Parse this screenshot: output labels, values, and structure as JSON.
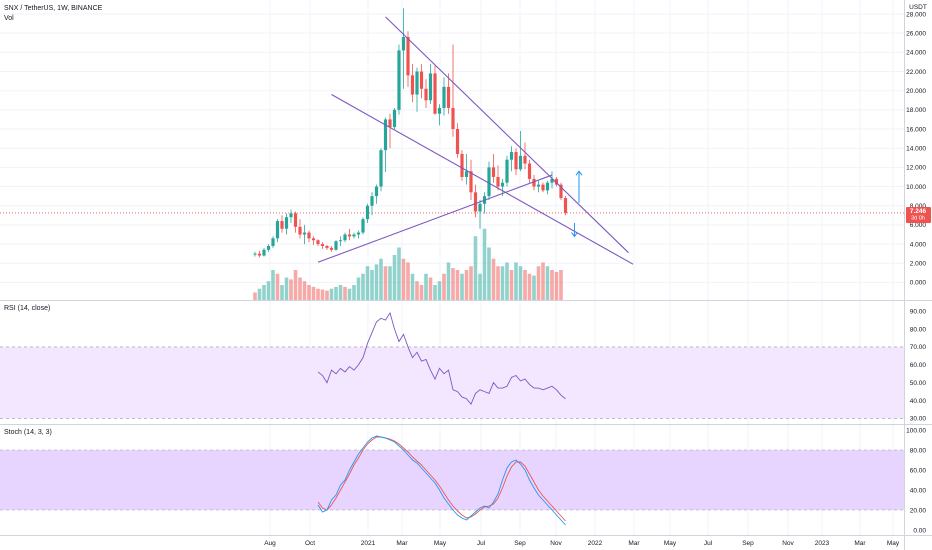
{
  "header": {
    "symbol": "SNX / TetherUS, 1W, BINANCE",
    "volume_label": "Vol",
    "currency": "USDT"
  },
  "price_tag": {
    "value": "7.246",
    "countdown": "3d 0h",
    "color": "#ef5350"
  },
  "colors": {
    "up": "#26a69a",
    "down": "#ef5350",
    "trendline": "#7e57c2",
    "rsi_line": "#7e57c2",
    "rsi_band": "#f3e6ff",
    "stoch_band": "#e8d5ff",
    "stoch_k": "#2196f3",
    "stoch_d": "#ef5350",
    "arrow": "#2196f3"
  },
  "chart_data": [
    {
      "type": "candlestick",
      "title": "SNX / TetherUS, 1W, BINANCE",
      "ylabel": "USDT",
      "ylim": [
        -1,
        28
      ],
      "y_ticks": [
        "28.000",
        "26.000",
        "24.000",
        "22.000",
        "20.000",
        "18.000",
        "16.000",
        "14.000",
        "12.000",
        "10.000",
        "8.000",
        "6.000",
        "4.000",
        "2.000",
        "0.000"
      ],
      "x_ticks": [
        "Aug",
        "Oct",
        "2021",
        "Mar",
        "May",
        "Jul",
        "Sep",
        "Nov",
        "2022",
        "Mar",
        "May",
        "Jul",
        "Sep",
        "Nov",
        "2023",
        "Mar",
        "May"
      ],
      "grid": true,
      "current_price": 7.246,
      "candles": [
        [
          2.9,
          3.2,
          2.7,
          3.0
        ],
        [
          3.0,
          3.3,
          2.6,
          2.8
        ],
        [
          2.8,
          3.6,
          2.7,
          3.4
        ],
        [
          3.4,
          4.0,
          3.2,
          3.8
        ],
        [
          3.8,
          4.8,
          3.6,
          4.6
        ],
        [
          4.6,
          6.6,
          4.2,
          6.4
        ],
        [
          6.4,
          7.0,
          5.2,
          5.6
        ],
        [
          5.6,
          7.2,
          5.0,
          6.8
        ],
        [
          6.8,
          7.6,
          6.2,
          7.2
        ],
        [
          7.2,
          7.4,
          5.2,
          5.8
        ],
        [
          5.8,
          6.6,
          4.6,
          5.0
        ],
        [
          5.0,
          6.0,
          4.0,
          5.2
        ],
        [
          5.2,
          5.4,
          4.2,
          4.6
        ],
        [
          4.6,
          4.8,
          3.9,
          4.4
        ],
        [
          4.4,
          4.5,
          3.8,
          4.0
        ],
        [
          4.0,
          4.2,
          3.5,
          3.8
        ],
        [
          3.8,
          3.9,
          3.4,
          3.6
        ],
        [
          3.6,
          3.8,
          3.2,
          3.4
        ],
        [
          3.4,
          4.4,
          3.3,
          4.3
        ],
        [
          4.3,
          4.8,
          3.8,
          4.4
        ],
        [
          4.4,
          5.2,
          4.2,
          5.0
        ],
        [
          5.0,
          5.6,
          4.4,
          4.8
        ],
        [
          4.8,
          5.2,
          4.6,
          5.0
        ],
        [
          5.0,
          5.4,
          4.6,
          5.2
        ],
        [
          5.2,
          6.8,
          5.0,
          6.6
        ],
        [
          6.6,
          8.2,
          6.2,
          8.0
        ],
        [
          8.0,
          9.4,
          7.0,
          9.0
        ],
        [
          9.0,
          10.2,
          8.2,
          10.0
        ],
        [
          10.0,
          14.0,
          9.5,
          13.8
        ],
        [
          13.8,
          17.2,
          11.5,
          17.0
        ],
        [
          17.0,
          17.6,
          14.0,
          16.2
        ],
        [
          16.2,
          18.2,
          16.0,
          18.0
        ],
        [
          18.0,
          24.8,
          17.5,
          24.2
        ],
        [
          24.2,
          28.6,
          20.2,
          25.6
        ],
        [
          25.6,
          26.2,
          20.4,
          21.6
        ],
        [
          21.6,
          22.8,
          18.8,
          19.6
        ],
        [
          19.6,
          22.4,
          17.8,
          22.0
        ],
        [
          22.0,
          22.8,
          19.2,
          20.2
        ],
        [
          20.2,
          21.2,
          18.2,
          19.0
        ],
        [
          19.0,
          22.8,
          18.6,
          21.8
        ],
        [
          21.8,
          22.6,
          17.5,
          17.6
        ],
        [
          17.6,
          18.6,
          16.4,
          18.2
        ],
        [
          18.2,
          21.4,
          17.4,
          20.4
        ],
        [
          20.4,
          21.8,
          17.6,
          18.2
        ],
        [
          18.2,
          24.8,
          15.2,
          16.0
        ],
        [
          16.0,
          16.6,
          13.0,
          13.4
        ],
        [
          13.4,
          13.8,
          10.6,
          11.0
        ],
        [
          11.0,
          13.4,
          10.2,
          11.6
        ],
        [
          11.6,
          12.8,
          8.6,
          9.4
        ],
        [
          9.4,
          10.2,
          6.8,
          7.4
        ],
        [
          7.4,
          8.6,
          5.6,
          8.2
        ],
        [
          8.2,
          9.4,
          7.2,
          9.0
        ],
        [
          9.0,
          12.6,
          8.6,
          12.0
        ],
        [
          12.0,
          13.4,
          10.4,
          11.0
        ],
        [
          11.0,
          12.2,
          9.6,
          10.0
        ],
        [
          10.0,
          10.8,
          9.0,
          10.4
        ],
        [
          10.4,
          13.2,
          10.0,
          12.8
        ],
        [
          12.8,
          14.2,
          11.6,
          13.6
        ],
        [
          13.6,
          14.0,
          11.2,
          11.8
        ],
        [
          11.8,
          15.8,
          11.6,
          13.2
        ],
        [
          13.2,
          14.6,
          11.8,
          12.4
        ],
        [
          12.4,
          12.8,
          10.4,
          10.8
        ],
        [
          10.8,
          11.2,
          9.6,
          10.0
        ],
        [
          10.0,
          10.6,
          9.4,
          10.2
        ],
        [
          10.2,
          10.4,
          9.4,
          9.6
        ],
        [
          9.6,
          10.6,
          9.2,
          10.4
        ],
        [
          10.4,
          11.6,
          9.8,
          10.8
        ],
        [
          10.8,
          11.0,
          10.0,
          10.2
        ],
        [
          10.2,
          10.4,
          8.6,
          8.8
        ],
        [
          8.8,
          9.0,
          7.0,
          7.246
        ]
      ],
      "volume": [
        [
          2.0,
          0
        ],
        [
          3.0,
          1
        ],
        [
          4.0,
          1
        ],
        [
          5.0,
          1
        ],
        [
          8.0,
          1
        ],
        [
          7.0,
          0
        ],
        [
          4.0,
          1
        ],
        [
          6.0,
          1
        ],
        [
          5.5,
          0
        ],
        [
          8.0,
          0
        ],
        [
          6.0,
          0
        ],
        [
          5.0,
          0
        ],
        [
          4.0,
          0
        ],
        [
          3.5,
          0
        ],
        [
          3.0,
          0
        ],
        [
          2.8,
          0
        ],
        [
          2.5,
          0
        ],
        [
          3.0,
          1
        ],
        [
          3.5,
          1
        ],
        [
          4.0,
          1
        ],
        [
          3.5,
          0
        ],
        [
          3.0,
          1
        ],
        [
          4.0,
          1
        ],
        [
          6.0,
          1
        ],
        [
          7.0,
          1
        ],
        [
          9.0,
          1
        ],
        [
          8.0,
          1
        ],
        [
          9.5,
          1
        ],
        [
          11.0,
          1
        ],
        [
          9.0,
          0
        ],
        [
          9.0,
          1
        ],
        [
          12.0,
          1
        ],
        [
          14.0,
          1
        ],
        [
          11.0,
          0
        ],
        [
          10.0,
          0
        ],
        [
          7.0,
          1
        ],
        [
          5.0,
          0
        ],
        [
          4.0,
          0
        ],
        [
          7.0,
          1
        ],
        [
          6.0,
          0
        ],
        [
          4.0,
          1
        ],
        [
          5.0,
          1
        ],
        [
          7.0,
          0
        ],
        [
          10.0,
          1
        ],
        [
          8.5,
          0
        ],
        [
          8.0,
          0
        ],
        [
          7.0,
          1
        ],
        [
          8.0,
          0
        ],
        [
          9.0,
          0
        ],
        [
          17.0,
          1
        ],
        [
          7.0,
          1
        ],
        [
          19.0,
          1
        ],
        [
          14.0,
          1
        ],
        [
          11.0,
          0
        ],
        [
          9.0,
          0
        ],
        [
          9.0,
          1
        ],
        [
          10.0,
          1
        ],
        [
          8.0,
          0
        ],
        [
          10.0,
          1
        ],
        [
          9.0,
          1
        ],
        [
          8.0,
          0
        ],
        [
          7.0,
          0
        ],
        [
          6.5,
          1
        ],
        [
          9.0,
          0
        ],
        [
          10.0,
          0
        ],
        [
          9.0,
          1
        ],
        [
          8.0,
          0
        ],
        [
          7.5,
          0
        ],
        [
          8.0,
          0
        ]
      ],
      "trendlines": [
        {
          "from": [
            14,
            2.1
          ],
          "to": [
            66,
            11.2
          ]
        },
        {
          "from": [
            17,
            19.6
          ],
          "to": [
            84,
            1.9
          ]
        },
        {
          "from": [
            29,
            27.7
          ],
          "to": [
            83,
            3.1
          ]
        }
      ],
      "arrows": [
        {
          "x": 72,
          "from": 8.3,
          "to": 11.6,
          "direction": "up"
        },
        {
          "x": 71,
          "from": 6.2,
          "to": 4.8,
          "direction": "down"
        }
      ]
    },
    {
      "type": "line",
      "title": "RSI (14, close)",
      "ylim": [
        28,
        94
      ],
      "y_ticks": [
        "90.00",
        "80.00",
        "70.00",
        "60.00",
        "50.00",
        "40.00",
        "30.00"
      ],
      "band": [
        30,
        70
      ],
      "x": [
        14,
        15,
        16,
        17,
        18,
        19,
        20,
        21,
        22,
        23,
        24,
        25,
        26,
        27,
        28,
        29,
        30,
        31,
        32,
        33,
        34,
        35,
        36,
        37,
        38,
        39,
        40,
        41,
        42,
        43,
        44,
        45,
        46,
        47,
        48,
        49,
        50,
        51,
        52,
        53,
        54,
        55,
        56,
        57,
        58,
        59,
        60,
        61,
        62,
        63,
        64,
        65,
        66,
        67,
        68,
        69
      ],
      "values": [
        56,
        54,
        50,
        57,
        55,
        58,
        56,
        59,
        57,
        60,
        64,
        72,
        78,
        84,
        86,
        85,
        89,
        80,
        73,
        77,
        70,
        64,
        67,
        62,
        63,
        57,
        52,
        58,
        55,
        57,
        46,
        45,
        42,
        41,
        38,
        44,
        46,
        45,
        44,
        50,
        47,
        47,
        48,
        53,
        54,
        51,
        52,
        49,
        47,
        47,
        46,
        47,
        48,
        46,
        43,
        41
      ]
    },
    {
      "type": "line",
      "title": "Stoch (14, 3, 3)",
      "ylim": [
        -2,
        102
      ],
      "y_ticks": [
        "100.00",
        "80.00",
        "60.00",
        "40.00",
        "20.00",
        "0.00"
      ],
      "band": [
        20,
        80
      ],
      "x": [
        14,
        15,
        16,
        17,
        18,
        19,
        20,
        21,
        22,
        23,
        24,
        25,
        26,
        27,
        28,
        29,
        30,
        31,
        32,
        33,
        34,
        35,
        36,
        37,
        38,
        39,
        40,
        41,
        42,
        43,
        44,
        45,
        46,
        47,
        48,
        49,
        50,
        51,
        52,
        53,
        54,
        55,
        56,
        57,
        58,
        59,
        60,
        61,
        62,
        63,
        64,
        65,
        66,
        67,
        68,
        69
      ],
      "series": [
        {
          "values": [
            25,
            18,
            20,
            30,
            35,
            45,
            50,
            60,
            68,
            76,
            82,
            88,
            92,
            94,
            93,
            92,
            90,
            88,
            84,
            80,
            75,
            70,
            67,
            62,
            57,
            52,
            47,
            40,
            32,
            26,
            20,
            15,
            12,
            10,
            14,
            18,
            22,
            24,
            22,
            28,
            36,
            50,
            62,
            68,
            70,
            66,
            60,
            50,
            42,
            35,
            30,
            25,
            20,
            15,
            10,
            5
          ]
        },
        {
          "values": [
            28,
            22,
            20,
            25,
            32,
            40,
            48,
            56,
            65,
            72,
            80,
            86,
            90,
            93,
            93,
            92,
            91,
            89,
            86,
            82,
            78,
            73,
            69,
            65,
            60,
            55,
            50,
            44,
            37,
            30,
            24,
            19,
            15,
            12,
            13,
            16,
            20,
            23,
            24,
            26,
            32,
            42,
            54,
            63,
            68,
            68,
            64,
            56,
            48,
            40,
            34,
            29,
            24,
            19,
            14,
            9
          ]
        }
      ]
    }
  ]
}
